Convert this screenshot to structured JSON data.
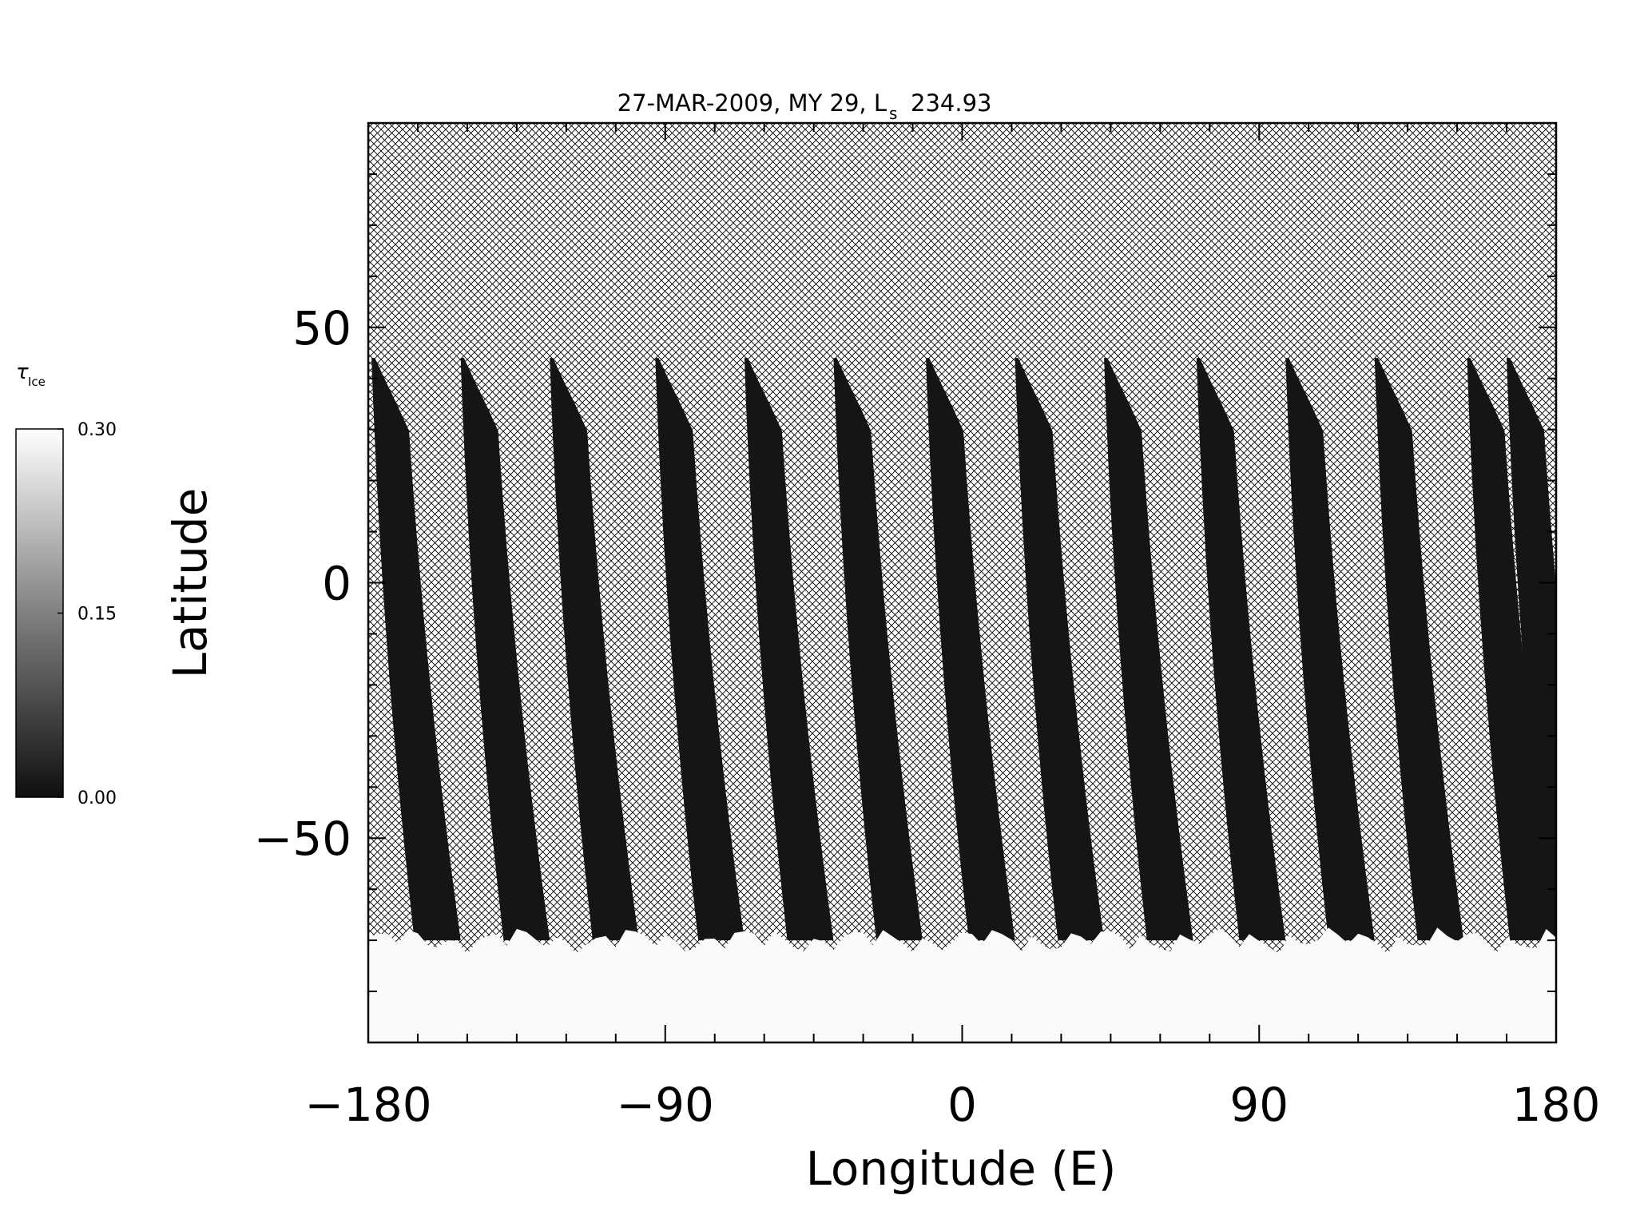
{
  "chart_data": {
    "type": "heatmap",
    "title": "27-MAR-2009, MY 29,  L",
    "title_subscript": "s",
    "title_value": "234.93",
    "xlabel": "Longitude (E)",
    "ylabel": "Latitude",
    "xlim": [
      -180,
      180
    ],
    "ylim": [
      -90,
      90
    ],
    "xticks": [
      -180,
      -90,
      0,
      90,
      180
    ],
    "xtick_labels": [
      "−180",
      "−90",
      "0",
      "90",
      "180"
    ],
    "yticks": [
      -50,
      0,
      50
    ],
    "ytick_labels": [
      "−50",
      "0",
      "50"
    ],
    "colorbar": {
      "label": "τ",
      "label_subscript": "Ice",
      "min": 0.0,
      "max": 0.3,
      "ticks": [
        0.0,
        0.15,
        0.3
      ],
      "tick_labels": [
        "0.00",
        "0.15",
        "0.30"
      ],
      "colormap": "grayscale"
    },
    "no_data_pattern": "crosshatch",
    "swath_count": 14,
    "swath_center_longitudes_at_equator": [
      -168,
      -141,
      -114,
      -82,
      -55,
      -28,
      0,
      27,
      54,
      82,
      109,
      136,
      164,
      176
    ],
    "swath_top_latitude": 44,
    "swath_bottom_latitude": -70,
    "swath_value": 0.0,
    "polar_ice_boundary_latitude": -70,
    "polar_ice_value": 0.3
  },
  "colors": {
    "background": "#ffffff",
    "swath": "#151515",
    "ice": "#fafafa",
    "hatch": "#000000",
    "axis": "#000000"
  }
}
